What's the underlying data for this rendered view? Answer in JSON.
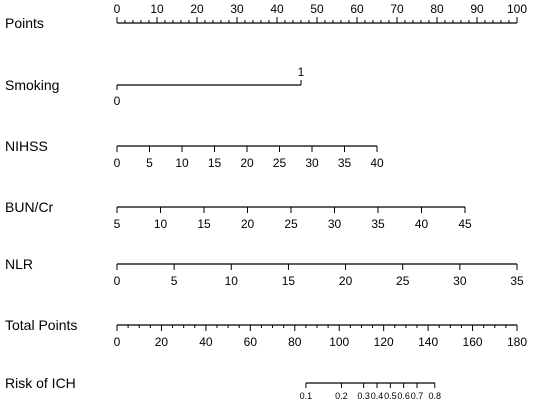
{
  "chart_data": {
    "type": "nomogram",
    "rows": [
      {
        "name": "Points",
        "ticks": [
          0,
          10,
          20,
          30,
          40,
          50,
          60,
          70,
          80,
          90,
          100
        ],
        "minor_step": 2,
        "labels_above": true,
        "points_range": [
          0,
          100
        ]
      },
      {
        "name": "Smoking",
        "categories": [
          {
            "label": "0",
            "points": 0
          },
          {
            "label": "1",
            "points": 46
          }
        ]
      },
      {
        "name": "NIHSS",
        "ticks": [
          0,
          5,
          10,
          15,
          20,
          25,
          30,
          35,
          40
        ],
        "points_range": [
          0,
          65
        ]
      },
      {
        "name": "BUN/Cr",
        "ticks": [
          5,
          10,
          15,
          20,
          25,
          30,
          35,
          40,
          45
        ],
        "points_range": [
          0,
          87
        ]
      },
      {
        "name": "NLR",
        "ticks": [
          0,
          5,
          10,
          15,
          20,
          25,
          30,
          35
        ],
        "points_range": [
          0,
          100
        ]
      },
      {
        "name": "Total Points",
        "ticks": [
          0,
          20,
          40,
          60,
          80,
          100,
          120,
          140,
          160,
          180
        ],
        "minor_step": 5,
        "total_range": [
          0,
          180
        ]
      },
      {
        "name": "Risk of ICH",
        "ticks": [
          {
            "label": "0.1",
            "total": 85
          },
          {
            "label": "0.2",
            "total": 101
          },
          {
            "label": "0.3",
            "total": 111
          },
          {
            "label": "0.4",
            "total": 117
          },
          {
            "label": "0.5",
            "total": 123
          },
          {
            "label": "0.6",
            "total": 129
          },
          {
            "label": "0.7",
            "total": 135
          },
          {
            "label": "0.8",
            "total": 143
          }
        ],
        "small_labels": true
      }
    ]
  }
}
